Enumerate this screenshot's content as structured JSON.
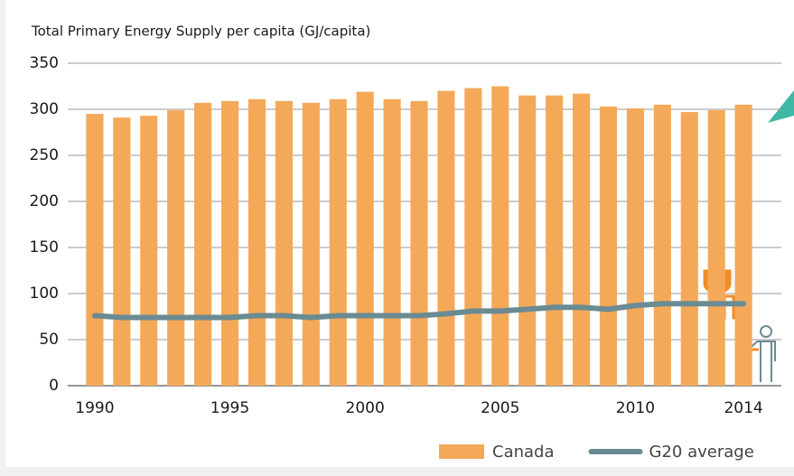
{
  "chart_data": {
    "type": "bar-line",
    "title": "Total Primary Energy Supply per capita (GJ/capita)",
    "x": [
      1990,
      1991,
      1992,
      1993,
      1994,
      1995,
      1996,
      1997,
      1998,
      1999,
      2000,
      2001,
      2002,
      2003,
      2004,
      2005,
      2006,
      2007,
      2008,
      2009,
      2010,
      2011,
      2012,
      2013,
      2014
    ],
    "xlim": [
      1989,
      2015.4
    ],
    "xticks": [
      1990,
      1995,
      2000,
      2005,
      2010,
      2014
    ],
    "ylim": [
      0,
      350
    ],
    "yticks": [
      0,
      50,
      100,
      150,
      200,
      250,
      300,
      350
    ],
    "grid": true,
    "legend": "bottom-right",
    "series": [
      {
        "name": "Canada",
        "kind": "bar",
        "color": "#f4a959",
        "values": [
          295,
          291,
          293,
          299,
          307,
          309,
          311,
          309,
          307,
          311,
          319,
          311,
          309,
          320,
          323,
          325,
          315,
          315,
          317,
          303,
          301,
          305,
          297,
          299,
          305
        ]
      },
      {
        "name": "G20 average",
        "kind": "line",
        "color": "#6b8b93",
        "values": [
          76,
          74,
          74,
          74,
          74,
          74,
          76,
          76,
          74,
          76,
          76,
          76,
          76,
          78,
          81,
          81,
          83,
          85,
          85,
          83,
          87,
          89,
          89,
          89,
          89
        ]
      }
    ]
  }
}
